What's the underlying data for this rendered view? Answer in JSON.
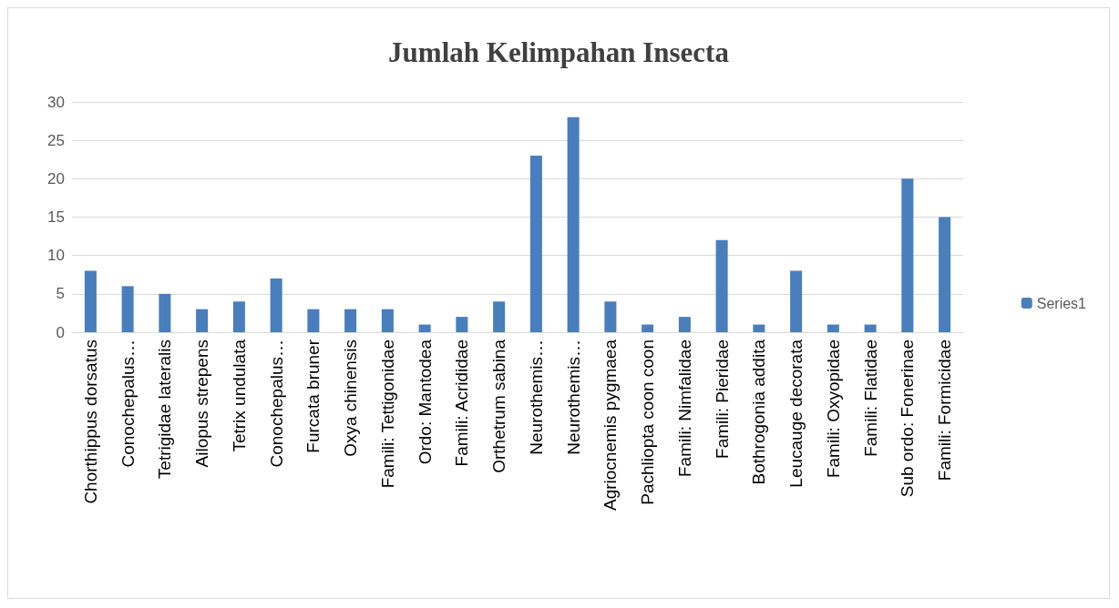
{
  "chart_data": {
    "type": "bar",
    "title": "Jumlah Kelimpahan Insecta",
    "categories": [
      "Chorthippus dorsatus",
      "Conochepalus…",
      "Tetrigidae lateralis",
      "Ailopus strepens",
      "Tetrix undulata",
      "Conochepalus…",
      "Furcata bruner",
      "Oxya chinensis",
      "Famili: Tettigonidae",
      "Ordo: Mantodea",
      "Famili: Acrididae",
      "Orthetrum sabina",
      "Neurothemis…",
      "Neurothemis…",
      "Agriocnemis pygmaea",
      "Pachliopta coon coon",
      "Famili: Nimfalidae",
      "Famili: Pieridae",
      "Bothrogonia addita",
      "Leucauge decorata",
      "Famili: Oxyopidae",
      "Famili: Flatidae",
      "Sub ordo: Fonerinae",
      "Famili: Formicidae"
    ],
    "series": [
      {
        "name": "Series1",
        "color": "#4a7ebb",
        "values": [
          8,
          6,
          5,
          3,
          4,
          7,
          3,
          3,
          3,
          1,
          2,
          4,
          23,
          28,
          4,
          1,
          2,
          12,
          1,
          8,
          1,
          1,
          20,
          15
        ]
      }
    ],
    "ylim": [
      0,
      30
    ],
    "yticks": [
      0,
      5,
      10,
      15,
      20,
      25,
      30
    ],
    "grid": "y",
    "legend": "right"
  }
}
